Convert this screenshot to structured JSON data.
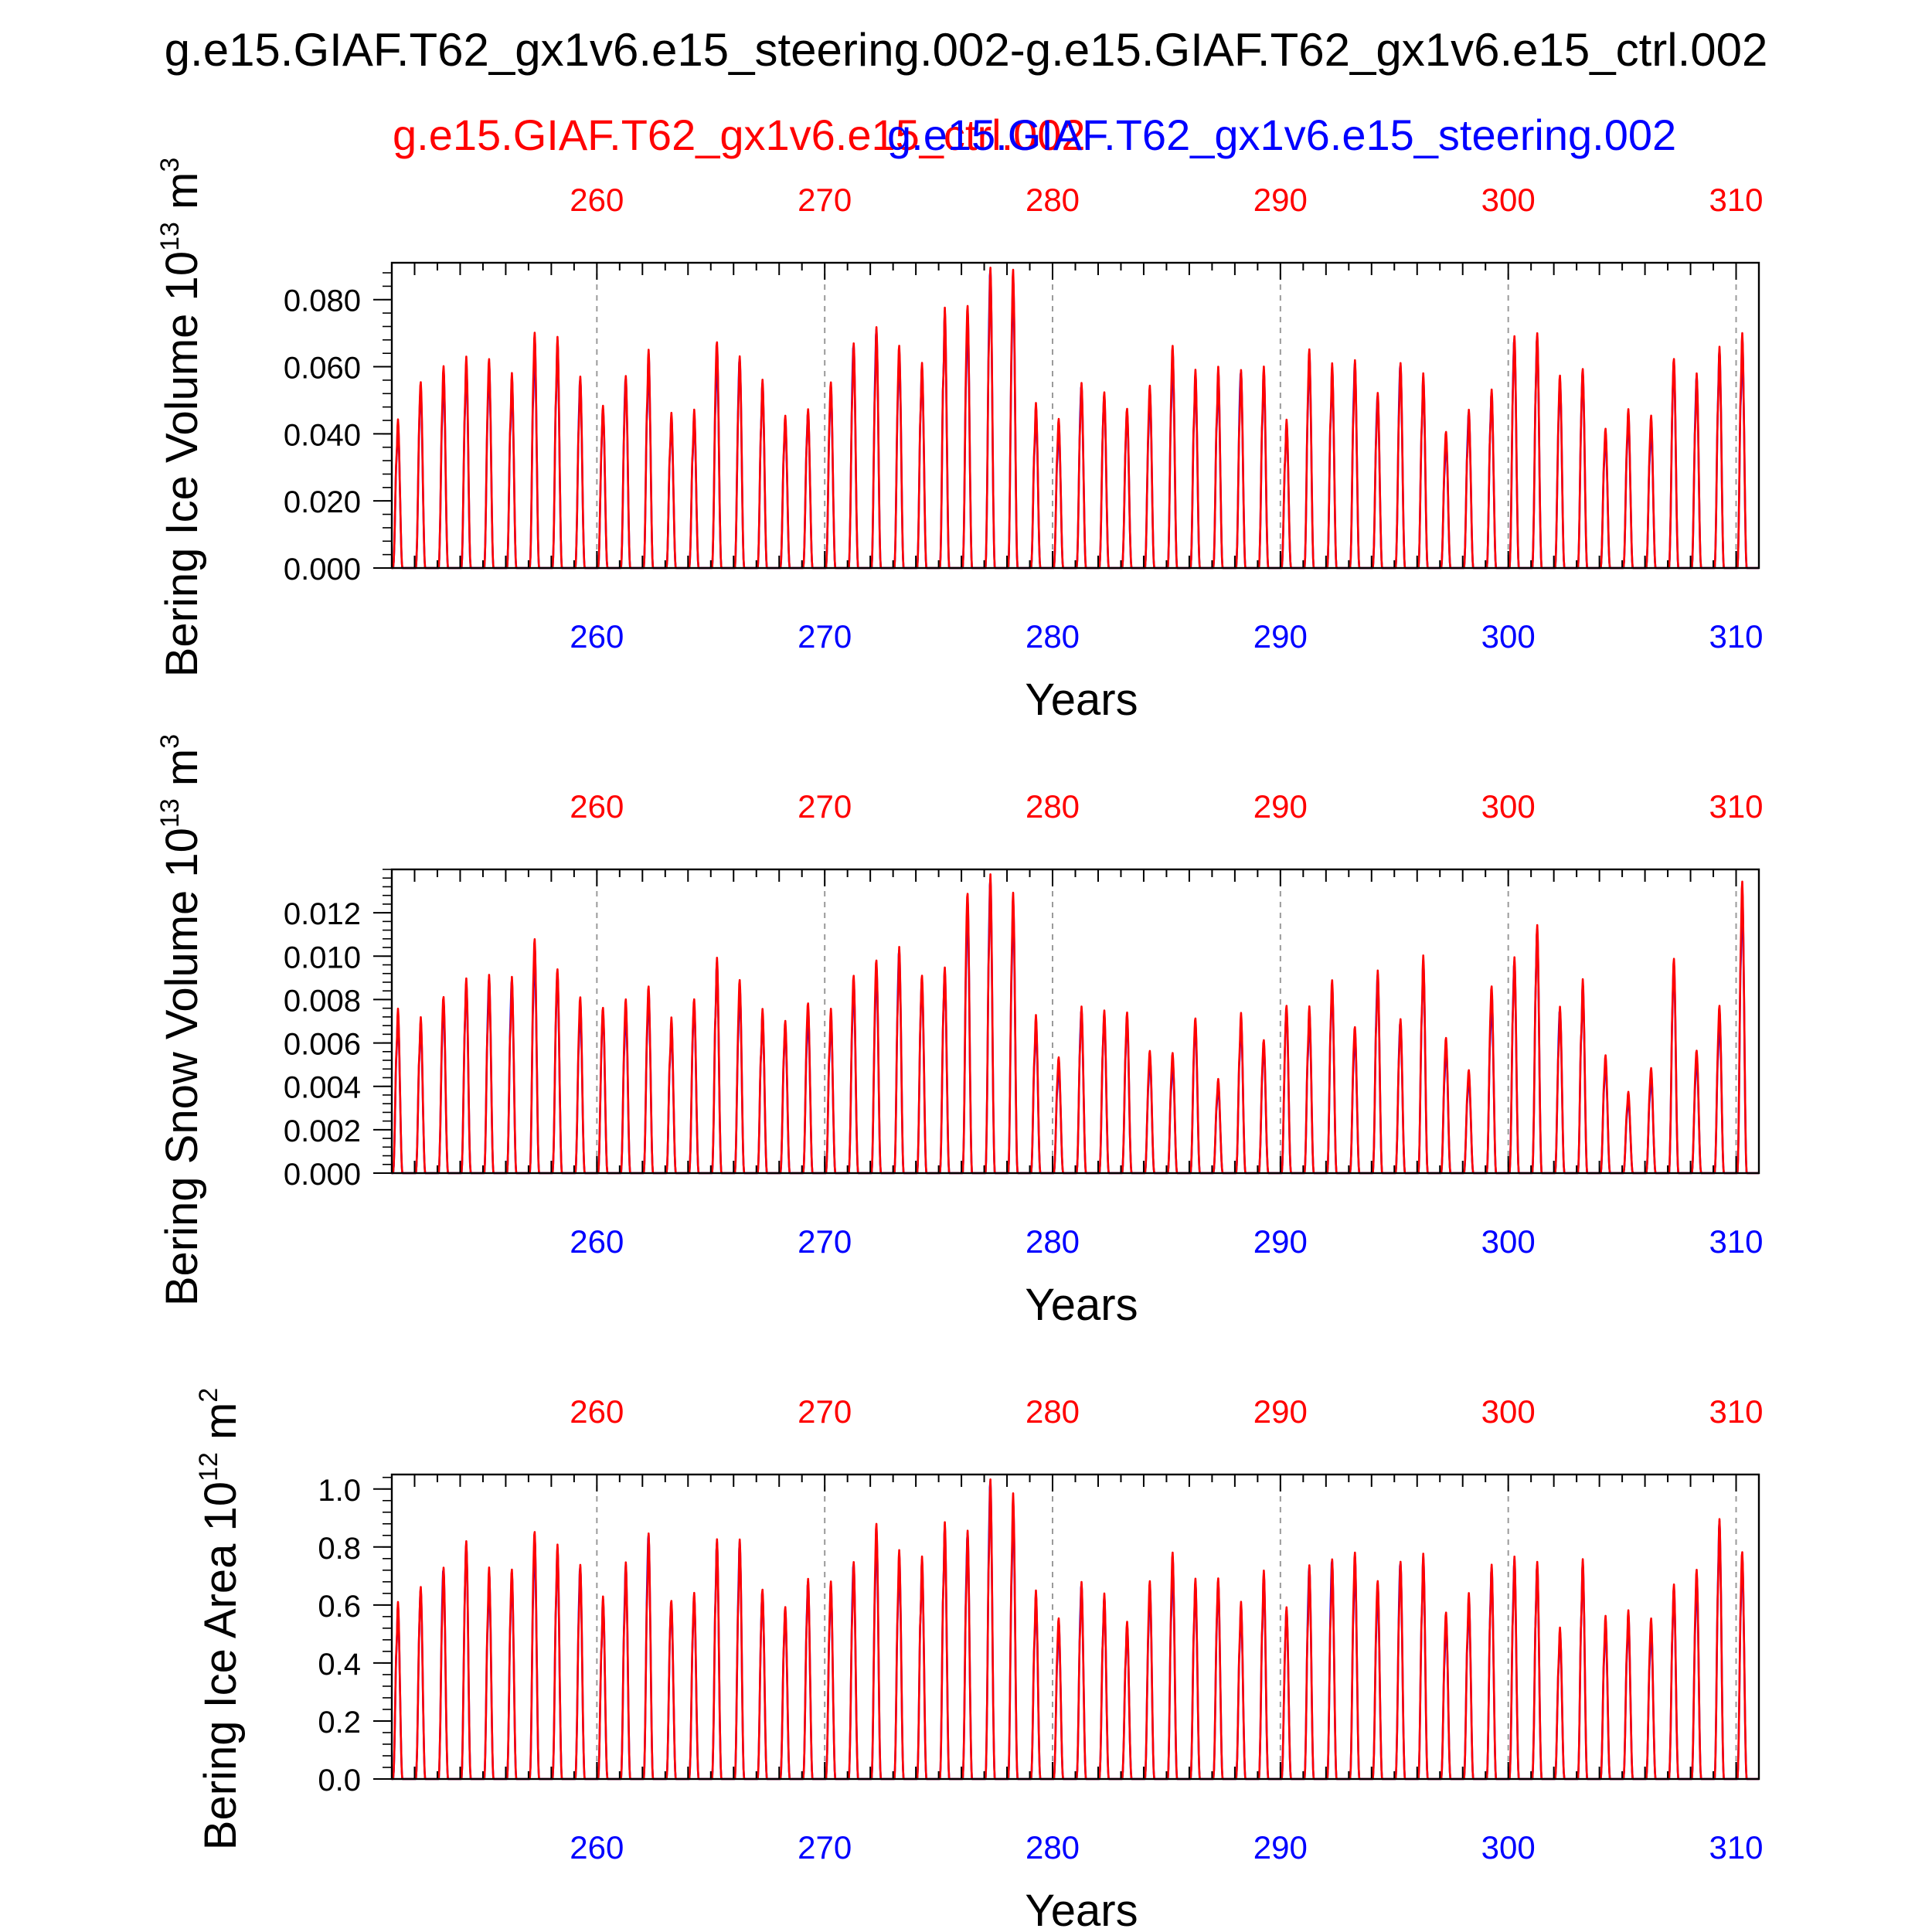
{
  "figure": {
    "title": "g.e15.GIAF.T62_gx1v6.e15_steering.002-g.e15.GIAF.T62_gx1v6.e15_ctrl.002",
    "legend_ctrl": "g.e15.GIAF.T62_gx1v6.e15_ctrl.002",
    "legend_steering": "g.e15.GIAF.T62_gx1v6.e15_steering.002",
    "colors": {
      "ctrl": "#ff0000",
      "steering": "#0000ff",
      "grid": "#9a9a9a",
      "frame": "#000000"
    }
  },
  "chart_data": [
    {
      "type": "line",
      "id": "ice-volume",
      "ylabel": "Bering Ice Volume",
      "yunit_base": "10",
      "yunit_exp": "13",
      "yunit_tail": "m",
      "yunit_tail_exp": "3",
      "xlabel": "Years",
      "xlim": [
        251.0,
        311.0
      ],
      "ylim": [
        0.0,
        0.091
      ],
      "xticks": [
        260,
        270,
        280,
        290,
        300,
        310
      ],
      "xtick_labels": [
        "260",
        "270",
        "280",
        "290",
        "300",
        "310"
      ],
      "yticks": [
        0.0,
        0.02,
        0.04,
        0.06,
        0.08
      ],
      "ytick_labels": [
        "0.000",
        "0.020",
        "0.040",
        "0.060",
        "0.080"
      ],
      "yminor_step": 0.004,
      "series": [
        {
          "name": "g.e15.GIAF.T62_gx1v6.e15_ctrl.002",
          "color": "#ff0000"
        },
        {
          "name": "g.e15.GIAF.T62_gx1v6.e15_steering.002",
          "color": "#0000ff"
        }
      ],
      "peak_years": [
        251,
        252,
        253,
        254,
        255,
        256,
        257,
        258,
        259,
        260,
        261,
        262,
        263,
        264,
        265,
        266,
        267,
        268,
        269,
        270,
        271,
        272,
        273,
        274,
        275,
        276,
        277,
        278,
        279,
        280,
        281,
        282,
        283,
        284,
        285,
        286,
        287,
        288,
        289,
        290,
        291,
        292,
        293,
        294,
        295,
        296,
        297,
        298,
        299,
        300,
        301,
        302,
        303,
        304,
        305,
        306,
        307,
        308,
        309,
        310
      ],
      "peaks_ctrl": [
        0.045,
        0.056,
        0.061,
        0.064,
        0.063,
        0.059,
        0.071,
        0.07,
        0.058,
        0.049,
        0.058,
        0.066,
        0.047,
        0.048,
        0.068,
        0.064,
        0.057,
        0.046,
        0.048,
        0.056,
        0.068,
        0.073,
        0.067,
        0.062,
        0.079,
        0.079,
        0.091,
        0.09,
        0.05,
        0.045,
        0.056,
        0.053,
        0.048,
        0.055,
        0.067,
        0.06,
        0.061,
        0.06,
        0.061,
        0.045,
        0.066,
        0.062,
        0.063,
        0.053,
        0.062,
        0.059,
        0.041,
        0.048,
        0.054,
        0.07,
        0.071,
        0.058,
        0.06,
        0.042,
        0.048,
        0.046,
        0.063,
        0.059,
        0.067,
        0.071
      ],
      "peaks_steering": [
        0.044,
        0.054,
        0.06,
        0.062,
        0.062,
        0.058,
        0.07,
        0.069,
        0.057,
        0.048,
        0.057,
        0.065,
        0.046,
        0.047,
        0.067,
        0.063,
        0.056,
        0.045,
        0.047,
        0.055,
        0.067,
        0.072,
        0.066,
        0.061,
        0.078,
        0.078,
        0.09,
        0.088,
        0.049,
        0.044,
        0.055,
        0.052,
        0.047,
        0.054,
        0.066,
        0.059,
        0.06,
        0.059,
        0.06,
        0.044,
        0.065,
        0.061,
        0.062,
        0.052,
        0.061,
        0.058,
        0.04,
        0.047,
        0.053,
        0.069,
        0.07,
        0.057,
        0.059,
        0.041,
        0.047,
        0.045,
        0.062,
        0.058,
        0.066,
        0.07
      ]
    },
    {
      "type": "line",
      "id": "snow-volume",
      "ylabel": "Bering Snow Volume",
      "yunit_base": "10",
      "yunit_exp": "13",
      "yunit_tail": "m",
      "yunit_tail_exp": "3",
      "xlabel": "Years",
      "xlim": [
        251.0,
        311.0
      ],
      "ylim": [
        0.0,
        0.014
      ],
      "xticks": [
        260,
        270,
        280,
        290,
        300,
        310
      ],
      "xtick_labels": [
        "260",
        "270",
        "280",
        "290",
        "300",
        "310"
      ],
      "yticks": [
        0.0,
        0.002,
        0.004,
        0.006,
        0.008,
        0.01,
        0.012
      ],
      "ytick_labels": [
        "0.000",
        "0.002",
        "0.004",
        "0.006",
        "0.008",
        "0.010",
        "0.012"
      ],
      "yminor_step": 0.0004,
      "series": [
        {
          "name": "g.e15.GIAF.T62_gx1v6.e15_ctrl.002",
          "color": "#ff0000"
        },
        {
          "name": "g.e15.GIAF.T62_gx1v6.e15_steering.002",
          "color": "#0000ff"
        }
      ],
      "peak_years": [
        251,
        252,
        253,
        254,
        255,
        256,
        257,
        258,
        259,
        260,
        261,
        262,
        263,
        264,
        265,
        266,
        267,
        268,
        269,
        270,
        271,
        272,
        273,
        274,
        275,
        276,
        277,
        278,
        279,
        280,
        281,
        282,
        283,
        284,
        285,
        286,
        287,
        288,
        289,
        290,
        291,
        292,
        293,
        294,
        295,
        296,
        297,
        298,
        299,
        300,
        301,
        302,
        303,
        304,
        305,
        306,
        307,
        308,
        309,
        310
      ],
      "peaks_ctrl": [
        0.0077,
        0.0073,
        0.0082,
        0.0091,
        0.0093,
        0.0092,
        0.0109,
        0.0095,
        0.0082,
        0.0077,
        0.0081,
        0.0087,
        0.0073,
        0.0081,
        0.0101,
        0.009,
        0.0077,
        0.0071,
        0.0079,
        0.0077,
        0.0092,
        0.0099,
        0.0106,
        0.0092,
        0.0096,
        0.013,
        0.014,
        0.0131,
        0.0074,
        0.0054,
        0.0078,
        0.0076,
        0.0075,
        0.0057,
        0.0056,
        0.0072,
        0.0044,
        0.0075,
        0.0062,
        0.0078,
        0.0078,
        0.009,
        0.0068,
        0.0095,
        0.0072,
        0.0102,
        0.0063,
        0.0048,
        0.0087,
        0.0101,
        0.0116,
        0.0078,
        0.0091,
        0.0055,
        0.0038,
        0.0049,
        0.01,
        0.0057,
        0.0078,
        0.0136
      ],
      "peaks_steering": [
        0.0075,
        0.0071,
        0.008,
        0.0089,
        0.0091,
        0.009,
        0.0107,
        0.0093,
        0.008,
        0.0075,
        0.0079,
        0.0085,
        0.0071,
        0.0079,
        0.0099,
        0.0088,
        0.0075,
        0.0069,
        0.0077,
        0.0075,
        0.009,
        0.0097,
        0.0104,
        0.009,
        0.0094,
        0.0128,
        0.0137,
        0.0128,
        0.0072,
        0.0052,
        0.0076,
        0.0074,
        0.0073,
        0.0055,
        0.0054,
        0.007,
        0.0042,
        0.0073,
        0.006,
        0.0076,
        0.0076,
        0.0088,
        0.0066,
        0.0093,
        0.007,
        0.01,
        0.0061,
        0.0046,
        0.0085,
        0.0099,
        0.0114,
        0.0076,
        0.0089,
        0.0053,
        0.0036,
        0.0047,
        0.0098,
        0.0055,
        0.0076,
        0.0133
      ]
    },
    {
      "type": "line",
      "id": "ice-area",
      "ylabel": "Bering Ice Area",
      "yunit_base": "10",
      "yunit_exp": "12",
      "yunit_tail": "m",
      "yunit_tail_exp": "2",
      "xlabel": "Years",
      "xlim": [
        251.0,
        311.0
      ],
      "ylim": [
        0.0,
        1.05
      ],
      "xticks": [
        260,
        270,
        280,
        290,
        300,
        310
      ],
      "xtick_labels": [
        "260",
        "270",
        "280",
        "290",
        "300",
        "310"
      ],
      "yticks": [
        0.0,
        0.2,
        0.4,
        0.6,
        0.8,
        1.0
      ],
      "ytick_labels": [
        "0.0",
        "0.2",
        "0.4",
        "0.6",
        "0.8",
        "1.0"
      ],
      "yminor_step": 0.04,
      "series": [
        {
          "name": "g.e15.GIAF.T62_gx1v6.e15_ctrl.002",
          "color": "#ff0000"
        },
        {
          "name": "g.e15.GIAF.T62_gx1v6.e15_steering.002",
          "color": "#0000ff"
        }
      ],
      "peak_years": [
        251,
        252,
        253,
        254,
        255,
        256,
        257,
        258,
        259,
        260,
        261,
        262,
        263,
        264,
        265,
        266,
        267,
        268,
        269,
        270,
        271,
        272,
        273,
        274,
        275,
        276,
        277,
        278,
        279,
        280,
        281,
        282,
        283,
        284,
        285,
        286,
        287,
        288,
        289,
        290,
        291,
        292,
        293,
        294,
        295,
        296,
        297,
        298,
        299,
        300,
        301,
        302,
        303,
        304,
        305,
        306,
        307,
        308,
        309,
        310
      ],
      "peaks_ctrl": [
        0.62,
        0.67,
        0.74,
        0.83,
        0.74,
        0.73,
        0.86,
        0.82,
        0.75,
        0.64,
        0.76,
        0.86,
        0.62,
        0.65,
        0.84,
        0.84,
        0.66,
        0.6,
        0.7,
        0.69,
        0.76,
        0.89,
        0.8,
        0.78,
        0.9,
        0.87,
        1.05,
        1.0,
        0.66,
        0.56,
        0.69,
        0.65,
        0.55,
        0.69,
        0.79,
        0.7,
        0.7,
        0.62,
        0.73,
        0.6,
        0.75,
        0.77,
        0.79,
        0.69,
        0.76,
        0.79,
        0.58,
        0.65,
        0.75,
        0.78,
        0.76,
        0.53,
        0.77,
        0.57,
        0.59,
        0.56,
        0.68,
        0.73,
        0.91,
        0.79
      ],
      "peaks_steering": [
        0.61,
        0.66,
        0.73,
        0.82,
        0.73,
        0.72,
        0.85,
        0.81,
        0.74,
        0.63,
        0.75,
        0.85,
        0.61,
        0.64,
        0.83,
        0.83,
        0.65,
        0.59,
        0.69,
        0.68,
        0.75,
        0.88,
        0.79,
        0.77,
        0.89,
        0.86,
        1.04,
        0.98,
        0.65,
        0.55,
        0.68,
        0.64,
        0.54,
        0.68,
        0.78,
        0.69,
        0.69,
        0.61,
        0.72,
        0.59,
        0.74,
        0.76,
        0.78,
        0.68,
        0.75,
        0.78,
        0.57,
        0.64,
        0.74,
        0.77,
        0.75,
        0.52,
        0.76,
        0.56,
        0.58,
        0.55,
        0.67,
        0.72,
        0.9,
        0.78
      ]
    }
  ]
}
